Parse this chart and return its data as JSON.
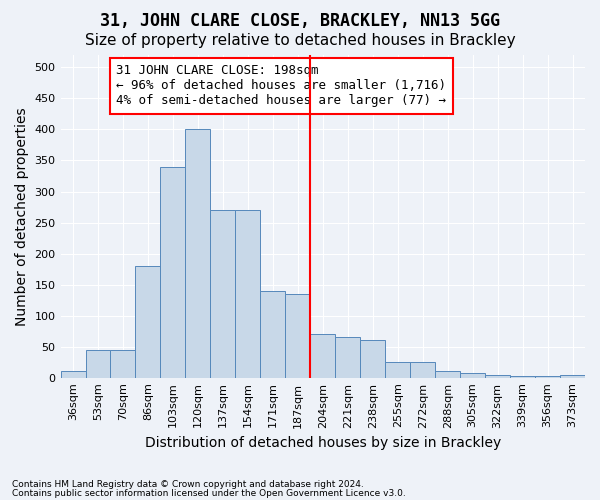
{
  "title": "31, JOHN CLARE CLOSE, BRACKLEY, NN13 5GG",
  "subtitle": "Size of property relative to detached houses in Brackley",
  "xlabel": "Distribution of detached houses by size in Brackley",
  "ylabel": "Number of detached properties",
  "footnote1": "Contains HM Land Registry data © Crown copyright and database right 2024.",
  "footnote2": "Contains public sector information licensed under the Open Government Licence v3.0.",
  "bin_labels": [
    "36sqm",
    "53sqm",
    "70sqm",
    "86sqm",
    "103sqm",
    "120sqm",
    "137sqm",
    "154sqm",
    "171sqm",
    "187sqm",
    "204sqm",
    "221sqm",
    "238sqm",
    "255sqm",
    "272sqm",
    "288sqm",
    "305sqm",
    "322sqm",
    "339sqm",
    "356sqm",
    "373sqm"
  ],
  "bar_heights": [
    10,
    45,
    45,
    180,
    340,
    400,
    270,
    270,
    140,
    135,
    70,
    65,
    60,
    25,
    25,
    10,
    8,
    5,
    3,
    2,
    5
  ],
  "bar_color": "#c8d8e8",
  "bar_edge_color": "#5588bb",
  "vline_color": "red",
  "annotation_text": "31 JOHN CLARE CLOSE: 198sqm\n← 96% of detached houses are smaller (1,716)\n4% of semi-detached houses are larger (77) →",
  "annotation_box_color": "white",
  "annotation_box_edge_color": "red",
  "ylim": [
    0,
    520
  ],
  "yticks": [
    0,
    50,
    100,
    150,
    200,
    250,
    300,
    350,
    400,
    450,
    500
  ],
  "background_color": "#eef2f8",
  "grid_color": "white",
  "title_fontsize": 12,
  "subtitle_fontsize": 11,
  "axis_label_fontsize": 10,
  "tick_fontsize": 8,
  "annotation_fontsize": 9
}
